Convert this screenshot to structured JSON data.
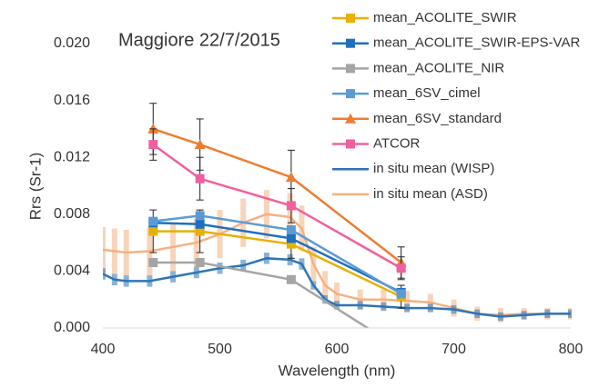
{
  "chart_data": {
    "type": "line",
    "title": "Maggiore 22/7/2015",
    "x_label": "Wavelength (nm)",
    "y_label": "Rrs (Sr-1)",
    "xlim": [
      400,
      800
    ],
    "xticks": [
      400,
      500,
      600,
      700,
      800
    ],
    "ylim": [
      0,
      0.02
    ],
    "yticks": [
      {
        "value": 0,
        "label": "0.000"
      },
      {
        "value": 0.004,
        "label": "0.004"
      },
      {
        "value": 0.008,
        "label": "0.008"
      },
      {
        "value": 0.012,
        "label": "0.012"
      },
      {
        "value": 0.016,
        "label": "0.016"
      },
      {
        "value": 0.02,
        "label": "0.020"
      }
    ],
    "legend": "top-right",
    "series": [
      {
        "name": "mean_ACOLITE_SWIR",
        "color": "#e8b000",
        "marker": "square",
        "x": [
          443,
          483,
          561,
          655
        ],
        "values": [
          0.0068,
          0.0068,
          0.0059,
          0.0022
        ],
        "errors": [
          0.0015,
          0.0015,
          0.001,
          0.0008
        ]
      },
      {
        "name": "mean_ACOLITE_SWIR-EPS-VAR",
        "color": "#1f6fc0",
        "marker": "square",
        "x": [
          443,
          483,
          561,
          655
        ],
        "values": [
          0.0074,
          0.0073,
          0.0063,
          0.0025
        ]
      },
      {
        "name": "mean_ACOLITE_NIR",
        "color": "#a5a5a5",
        "marker": "square",
        "x": [
          443,
          483,
          561,
          655
        ],
        "values": [
          0.0046,
          0.0046,
          0.0034,
          -0.0015
        ]
      },
      {
        "name": "mean_6SV_cimel",
        "color": "#5b9bd5",
        "marker": "square",
        "x": [
          443,
          483,
          561,
          655
        ],
        "values": [
          0.0075,
          0.0079,
          0.0069,
          0.0024
        ]
      },
      {
        "name": "mean_6SV_standard",
        "color": "#ed7d31",
        "marker": "triangle",
        "x": [
          443,
          483,
          561,
          655
        ],
        "values": [
          0.014,
          0.0129,
          0.0106,
          0.0046
        ],
        "errors": [
          0.0018,
          0.0018,
          0.0019,
          0.0011
        ]
      },
      {
        "name": "ATCOR",
        "color": "#f0609e",
        "marker": "square",
        "x": [
          443,
          483,
          561,
          655
        ],
        "values": [
          0.0129,
          0.0105,
          0.0086,
          0.0042
        ],
        "errors": [
          0.0011,
          0.0015,
          0.0012,
          0.0008
        ]
      },
      {
        "name": "in situ mean (WISP)",
        "color": "#2e75b6",
        "marker": "none",
        "x": [
          400,
          410,
          420,
          440,
          460,
          480,
          500,
          520,
          540,
          560,
          570,
          580,
          590,
          600,
          620,
          640,
          660,
          680,
          700,
          720,
          740,
          760,
          780,
          800
        ],
        "values": [
          0.0038,
          0.0034,
          0.0033,
          0.0033,
          0.0036,
          0.0039,
          0.0042,
          0.0044,
          0.0049,
          0.0048,
          0.0045,
          0.003,
          0.002,
          0.0016,
          0.0016,
          0.0015,
          0.0014,
          0.0014,
          0.0013,
          0.001,
          0.0008,
          0.0009,
          0.001,
          0.001
        ],
        "errors": [
          0.0004,
          0.0004,
          0.0004,
          0.0004,
          0.0004,
          0.0004,
          0.0004,
          0.0004,
          0.0004,
          0.0004,
          0.0004,
          0.0003,
          0.0003,
          0.0003,
          0.0003,
          0.0003,
          0.0003,
          0.0003,
          0.0003,
          0.0003,
          0.0003,
          0.0003,
          0.0003,
          0.0003
        ]
      },
      {
        "name": "in situ mean (ASD)",
        "color": "#f4b183",
        "marker": "none",
        "x": [
          400,
          410,
          420,
          440,
          460,
          480,
          500,
          520,
          540,
          560,
          570,
          580,
          590,
          600,
          620,
          640,
          660,
          680,
          700,
          720,
          740,
          760,
          780,
          800
        ],
        "values": [
          0.0055,
          0.0054,
          0.0053,
          0.0054,
          0.0057,
          0.006,
          0.0066,
          0.0074,
          0.008,
          0.0078,
          0.007,
          0.0045,
          0.003,
          0.0024,
          0.002,
          0.002,
          0.0019,
          0.0018,
          0.0014,
          0.001,
          0.0009,
          0.001,
          0.001,
          0.001
        ],
        "errors": [
          0.0016,
          0.0016,
          0.0016,
          0.0017,
          0.0017,
          0.0017,
          0.0017,
          0.0017,
          0.0017,
          0.0017,
          0.0016,
          0.0012,
          0.001,
          0.0008,
          0.0007,
          0.0007,
          0.0007,
          0.0006,
          0.0006,
          0.0005,
          0.0005,
          0.0004,
          0.0004,
          0.0004
        ]
      }
    ]
  }
}
